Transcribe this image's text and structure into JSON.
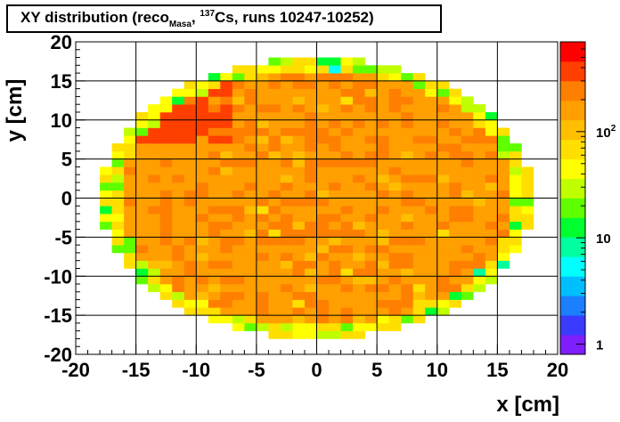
{
  "chart_data": {
    "type": "heatmap",
    "title_parts": {
      "pre": "XY distribution (reco",
      "sub": "Masa",
      "mid": ", ",
      "sup": "137",
      "post": "Cs, runs 10247-10252)"
    },
    "xlabel": "x [cm]",
    "ylabel": "y [cm]",
    "xlim": [
      -20,
      20
    ],
    "ylim": [
      -20,
      20
    ],
    "xticks": [
      "-20",
      "-15",
      "-10",
      "-5",
      "0",
      "5",
      "10",
      "15",
      "20"
    ],
    "yticks": [
      "-20",
      "-15",
      "-10",
      "-5",
      "0",
      "5",
      "10",
      "15",
      "20"
    ],
    "grid": true,
    "bin_size_cm": 1,
    "detector_radius_cm": 18,
    "z_scale": "log",
    "z_range": [
      0.8,
      700
    ],
    "z_ticks": [
      "1",
      "10",
      "10^2"
    ],
    "typical_count": 180,
    "peak_region": {
      "x": [
        -16,
        -7
      ],
      "y": [
        7,
        15
      ],
      "count": 350
    },
    "edge_count": 60,
    "palette": [
      "#7f1fff",
      "#3b3bff",
      "#1b7fff",
      "#00bfff",
      "#00ffff",
      "#00ff9f",
      "#00ff2f",
      "#5fff00",
      "#bfff00",
      "#ffff00",
      "#ffdf00",
      "#ffbf00",
      "#ff9f00",
      "#ff7f00",
      "#ff3f00",
      "#ff0000"
    ]
  }
}
